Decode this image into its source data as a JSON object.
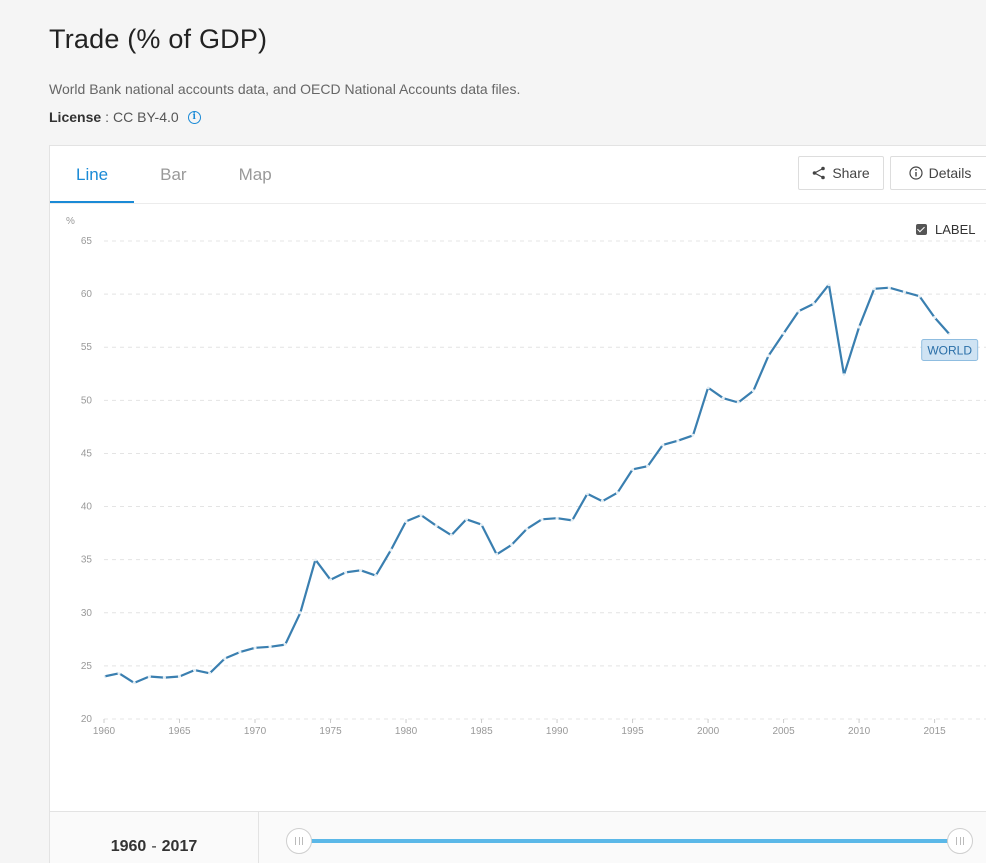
{
  "page": {
    "title": "Trade (% of GDP)",
    "source": "World Bank national accounts data, and OECD National Accounts data files.",
    "license_key": "License",
    "license_value": "CC BY-4.0"
  },
  "tabs": [
    {
      "label": "Line",
      "active": true
    },
    {
      "label": "Bar",
      "active": false
    },
    {
      "label": "Map",
      "active": false
    }
  ],
  "toolbar": {
    "share_label": "Share",
    "details_label": "Details"
  },
  "label_toggle": {
    "label": "LABEL",
    "checked": true
  },
  "footer": {
    "range_start": "1960",
    "range_end": "2017",
    "range_sep": "-",
    "slider_start": 0,
    "slider_end": 1
  },
  "colors": {
    "accent": "#1a8ad6",
    "line": "#3a7fb0",
    "slider": "#5bb8e8"
  },
  "chart_data": {
    "type": "line",
    "ylabel": "%",
    "ylim": [
      20,
      65
    ],
    "yticks": [
      20,
      25,
      30,
      35,
      40,
      45,
      50,
      55,
      60,
      65
    ],
    "xlim": [
      1960,
      2019
    ],
    "xticks": [
      1960,
      1965,
      1970,
      1975,
      1980,
      1985,
      1990,
      1995,
      2000,
      2005,
      2010,
      2015
    ],
    "grid": true,
    "series": [
      {
        "name": "WORLD",
        "x": [
          1960,
          1961,
          1962,
          1963,
          1964,
          1965,
          1966,
          1967,
          1968,
          1969,
          1970,
          1971,
          1972,
          1973,
          1974,
          1975,
          1976,
          1977,
          1978,
          1979,
          1980,
          1981,
          1982,
          1983,
          1984,
          1985,
          1986,
          1987,
          1988,
          1989,
          1990,
          1991,
          1992,
          1993,
          1994,
          1995,
          1996,
          1997,
          1998,
          1999,
          2000,
          2001,
          2002,
          2003,
          2004,
          2005,
          2006,
          2007,
          2008,
          2009,
          2010,
          2011,
          2012,
          2013,
          2014,
          2015,
          2016
        ],
        "values": [
          24.0,
          24.3,
          23.4,
          24.0,
          23.9,
          24.0,
          24.6,
          24.3,
          25.7,
          26.3,
          26.7,
          26.8,
          27.0,
          30.0,
          35.0,
          33.1,
          33.8,
          34.0,
          33.5,
          35.9,
          38.6,
          39.2,
          38.2,
          37.3,
          38.8,
          38.3,
          35.5,
          36.4,
          37.9,
          38.8,
          38.9,
          38.7,
          41.2,
          40.5,
          41.3,
          43.5,
          43.8,
          45.8,
          46.2,
          46.7,
          51.2,
          50.2,
          49.8,
          50.9,
          54.2,
          56.3,
          58.4,
          59.1,
          60.9,
          52.4,
          56.9,
          60.5,
          60.6,
          60.2,
          59.8,
          57.8,
          56.2
        ]
      }
    ]
  }
}
